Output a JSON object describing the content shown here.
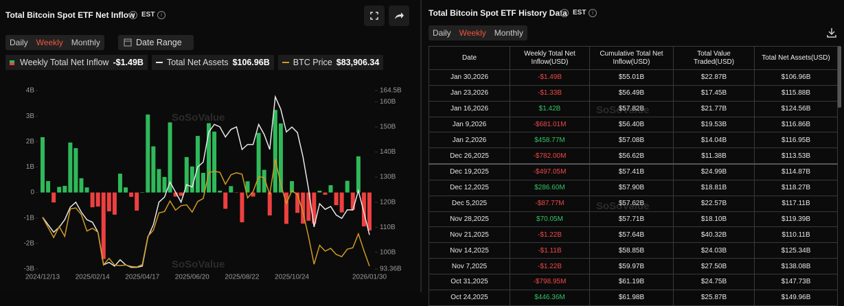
{
  "header": {
    "title": "Total Bitcoin Spot ETF Net Inflow",
    "timezone": "EST",
    "tabs": [
      "Daily",
      "Weekly",
      "Monthly"
    ],
    "active_tab": 1,
    "date_range": "Date Range"
  },
  "chart_data": {
    "type": "bar",
    "categories": [
      "2024/12/13",
      null,
      null,
      null,
      null,
      null,
      null,
      null,
      null,
      "2025/02/14",
      null,
      null,
      null,
      null,
      null,
      null,
      null,
      null,
      "2025/04/17",
      null,
      null,
      null,
      null,
      null,
      null,
      null,
      null,
      "2025/06/20",
      null,
      null,
      null,
      null,
      null,
      null,
      null,
      null,
      "2025/08/22",
      null,
      null,
      null,
      null,
      null,
      null,
      null,
      null,
      "2025/10/24",
      null,
      null,
      null,
      null,
      null,
      null,
      null,
      null,
      null,
      null,
      null,
      null,
      null,
      "2026/01/30"
    ],
    "series": [
      {
        "name": "Weekly Total Net Inflow",
        "current": "-$1.49B",
        "color": "#2fb95a",
        "negative_color": "#ee4040",
        "values": [
          2.17,
          0.45,
          -0.39,
          0.22,
          0.26,
          1.96,
          1.74,
          0.56,
          0.2,
          -0.58,
          -0.55,
          -2.61,
          -0.74,
          -0.87,
          0.74,
          0.2,
          -0.17,
          -0.71,
          0.015,
          3.06,
          1.81,
          0.92,
          0.61,
          2.75,
          -0.16,
          -0.13,
          1.39,
          1.02,
          2.22,
          0.77,
          2.72,
          2.39,
          0.07,
          -0.64,
          0.25,
          -0.01,
          -1.17,
          0.44,
          -0.16,
          2.34,
          0.89,
          -0.9,
          3.24,
          2.71,
          -1.23,
          0.446,
          -0.799,
          -1.22,
          -1.11,
          -1.22,
          0.07,
          -0.088,
          0.287,
          -0.497,
          -0.782,
          0.459,
          -0.681,
          1.42,
          -1.33,
          -1.49
        ]
      },
      {
        "name": "Total Net Assets",
        "current": "$106.96B",
        "type": "line",
        "axis": "y2",
        "color": "#e8e8e8",
        "values": [
          114,
          111,
          108,
          110,
          113,
          118,
          120,
          116,
          113,
          112,
          108,
          95,
          96,
          94.5,
          97,
          95,
          94,
          94,
          94.5,
          106,
          111,
          120,
          122,
          128,
          124,
          120,
          127,
          126,
          134,
          136,
          148,
          151,
          150,
          146,
          149,
          150,
          141,
          143,
          143,
          151,
          147,
          141,
          162,
          157,
          148,
          149.96,
          147.73,
          138.08,
          125.34,
          110.11,
          119.39,
          117.11,
          118.27,
          114.87,
          113.53,
          116.95,
          116.86,
          124.56,
          115.88,
          106.96
        ]
      },
      {
        "name": "BTC Price",
        "current": "$83,906.34",
        "type": "line",
        "axis": "y3",
        "color": "#d09a22",
        "values": [
          101400,
          97800,
          94200,
          98100,
          94600,
          104400,
          104800,
          102400,
          96500,
          97500,
          96100,
          84400,
          86700,
          84300,
          84100,
          84300,
          83800,
          83600,
          84500,
          94600,
          96800,
          103000,
          103500,
          107300,
          104000,
          105600,
          105900,
          103300,
          107100,
          108200,
          117500,
          117900,
          117600,
          113300,
          116700,
          117400,
          116900,
          108400,
          110700,
          116000,
          115700,
          109600,
          122300,
          113200,
          106400,
          111000,
          109600,
          103300,
          94500,
          84600,
          91400,
          89300,
          90300,
          88100,
          87300,
          90000,
          90500,
          95500,
          89500,
          83906.34
        ]
      }
    ],
    "ylim": [
      -3,
      4
    ],
    "yticks": [
      {
        "value": 4,
        "label": "4B"
      },
      {
        "value": 3,
        "label": "3B"
      },
      {
        "value": 2,
        "label": "2B"
      },
      {
        "value": 1,
        "label": "1B"
      },
      0,
      {
        "value": -1,
        "label": "-1B"
      },
      {
        "value": -2,
        "label": "-2B"
      },
      {
        "value": -3,
        "label": "-3B"
      }
    ],
    "y2lim": [
      93.36,
      164.5
    ],
    "y2ticks": [
      {
        "value": 164.5,
        "label": "164.5B"
      },
      {
        "value": 160,
        "label": "160B"
      },
      {
        "value": 150,
        "label": "150B"
      },
      {
        "value": 140,
        "label": "140B"
      },
      {
        "value": 130,
        "label": "130B"
      },
      {
        "value": 120,
        "label": "120B"
      },
      {
        "value": 110,
        "label": "110B"
      },
      {
        "value": 100,
        "label": "100B"
      },
      {
        "value": 93.36,
        "label": "93.36B"
      }
    ],
    "y3lim": [
      82900,
      146900
    ],
    "grid": false,
    "watermark": "SoSoValue"
  },
  "history": {
    "title": "Total Bitcoin Spot ETF History Data",
    "timezone": "EST",
    "tabs": [
      "Daily",
      "Weekly",
      "Monthly"
    ],
    "active_tab": 1,
    "columns": [
      "Date",
      "Weekly Total Net Inflow(USD)",
      "Cumulative Total Net Inflow(USD)",
      "Total Value Traded(USD)",
      "Total Net Assets(USD)"
    ],
    "rows": [
      [
        "Jan 30,2026",
        "-$1.49B",
        "$55.01B",
        "$22.87B",
        "$106.96B"
      ],
      [
        "Jan 23,2026",
        "-$1.33B",
        "$56.49B",
        "$17.45B",
        "$115.88B"
      ],
      [
        "Jan 16,2026",
        "$1.42B",
        "$57.82B",
        "$21.77B",
        "$124.56B"
      ],
      [
        "Jan 9,2026",
        "-$681.01M",
        "$56.40B",
        "$19.53B",
        "$116.86B"
      ],
      [
        "Jan 2,2026",
        "$458.77M",
        "$57.08B",
        "$14.04B",
        "$116.95B"
      ],
      [
        "Dec 26,2025",
        "-$782.00M",
        "$56.62B",
        "$11.38B",
        "$113.53B"
      ],
      [
        "Dec 19,2025",
        "-$497.05M",
        "$57.41B",
        "$24.99B",
        "$114.87B"
      ],
      [
        "Dec 12,2025",
        "$286.60M",
        "$57.90B",
        "$18.81B",
        "$118.27B"
      ],
      [
        "Dec 5,2025",
        "-$87.77M",
        "$57.62B",
        "$22.57B",
        "$117.11B"
      ],
      [
        "Nov 28,2025",
        "$70.05M",
        "$57.71B",
        "$18.10B",
        "$119.39B"
      ],
      [
        "Nov 21,2025",
        "-$1.22B",
        "$57.64B",
        "$40.32B",
        "$110.11B"
      ],
      [
        "Nov 14,2025",
        "-$1.11B",
        "$58.85B",
        "$24.03B",
        "$125.34B"
      ],
      [
        "Nov 7,2025",
        "-$1.22B",
        "$59.97B",
        "$27.50B",
        "$138.08B"
      ],
      [
        "Oct 31,2025",
        "-$798.95M",
        "$61.19B",
        "$24.75B",
        "$147.73B"
      ],
      [
        "Oct 24,2025",
        "$446.36M",
        "$61.98B",
        "$25.87B",
        "$149.96B"
      ]
    ]
  }
}
